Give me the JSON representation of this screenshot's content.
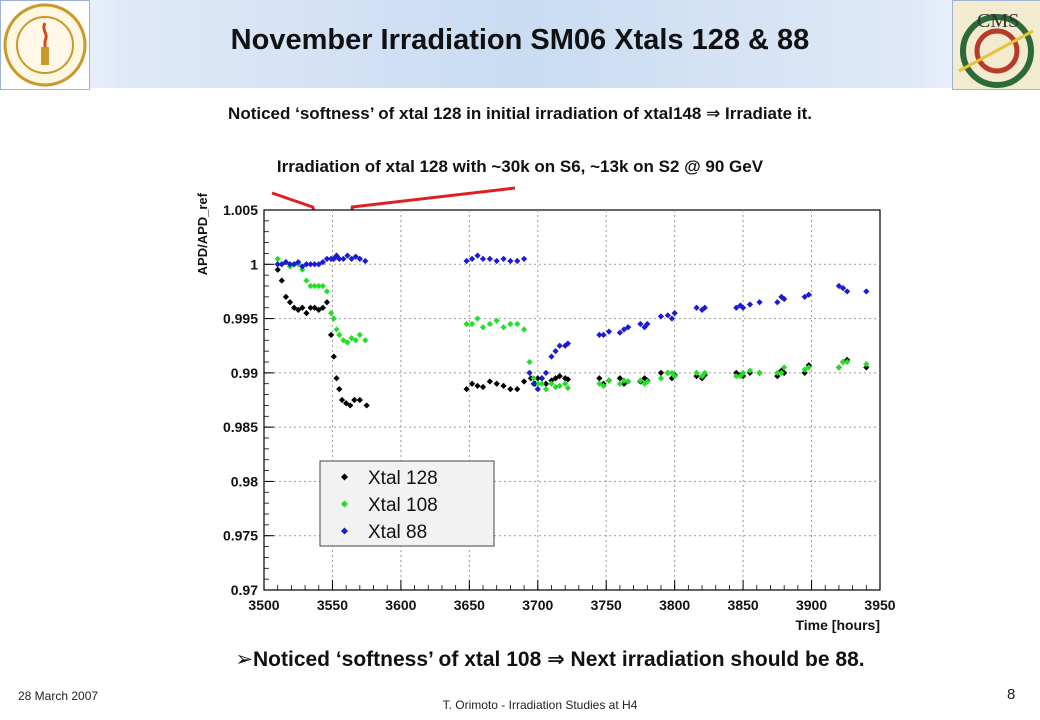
{
  "slide": {
    "title": "November Irradiation SM06 Xtals 128 & 88",
    "note_top": "Noticed ‘softness’ of xtal 128 in initial irradiation of xtal148 ⇒ Irradiate it.",
    "note_irradiation": "Irradiation of xtal 128 with ~30k on S6, ~13k on S2 @ 90 GeV",
    "bullet": "➢Noticed ‘softness’ of xtal 108 ⇒ Next irradiation should be 88.",
    "date": "28 March 2007",
    "footer": "T. Orimoto - Irradiation Studies at H4",
    "page_number": "8"
  },
  "logos": {
    "left": "caltech-seal-icon",
    "right": "cms-logo-icon"
  },
  "chart_data": {
    "type": "scatter",
    "xlabel": "Time [hours]",
    "ylabel": "APD/APD_ref",
    "xlim": [
      3500,
      3950
    ],
    "ylim": [
      0.97,
      1.005
    ],
    "x_ticks": [
      3500,
      3550,
      3600,
      3650,
      3700,
      3750,
      3800,
      3850,
      3900,
      3950
    ],
    "y_ticks": [
      0.97,
      0.975,
      0.98,
      0.985,
      0.99,
      0.995,
      1,
      1.005
    ],
    "grid": true,
    "legend_position": "lower-middle",
    "colors": {
      "Xtal 128": "#000000",
      "Xtal 108": "#22e022",
      "Xtal 88": "#1a1ad8",
      "annotation": "#e02020"
    },
    "series": [
      {
        "name": "Xtal 128",
        "color": "#000000",
        "x": [
          3510,
          3513,
          3516,
          3519,
          3522,
          3525,
          3528,
          3531,
          3534,
          3537,
          3540,
          3543,
          3546,
          3549,
          3551,
          3553,
          3555,
          3557,
          3560,
          3563,
          3566,
          3570,
          3575,
          3648,
          3652,
          3656,
          3660,
          3665,
          3670,
          3675,
          3680,
          3685,
          3690,
          3695,
          3698,
          3700,
          3703,
          3706,
          3710,
          3713,
          3716,
          3720,
          3722,
          3745,
          3748,
          3752,
          3760,
          3763,
          3766,
          3775,
          3778,
          3780,
          3790,
          3795,
          3798,
          3800,
          3816,
          3820,
          3822,
          3845,
          3848,
          3850,
          3855,
          3862,
          3875,
          3878,
          3880,
          3895,
          3898,
          3920,
          3923,
          3926,
          3940
        ],
        "y": [
          0.9995,
          0.9985,
          0.997,
          0.9965,
          0.996,
          0.9958,
          0.996,
          0.9955,
          0.996,
          0.996,
          0.9958,
          0.996,
          0.9965,
          0.9935,
          0.9915,
          0.9895,
          0.9885,
          0.9875,
          0.9872,
          0.987,
          0.9875,
          0.9875,
          0.987,
          0.9885,
          0.989,
          0.9888,
          0.9887,
          0.9892,
          0.989,
          0.9888,
          0.9885,
          0.9885,
          0.9892,
          0.9895,
          0.989,
          0.9895,
          0.9895,
          0.989,
          0.9893,
          0.9895,
          0.9897,
          0.9895,
          0.9894,
          0.9895,
          0.989,
          0.9893,
          0.9895,
          0.989,
          0.9892,
          0.9892,
          0.9895,
          0.9893,
          0.99,
          0.99,
          0.9895,
          0.9898,
          0.9897,
          0.9895,
          0.9898,
          0.99,
          0.9898,
          0.9897,
          0.99,
          0.99,
          0.9897,
          0.9902,
          0.99,
          0.99,
          0.9907,
          0.9905,
          0.991,
          0.9912,
          0.9905
        ]
      },
      {
        "name": "Xtal 108",
        "color": "#22e022",
        "x": [
          3510,
          3513,
          3516,
          3519,
          3522,
          3525,
          3528,
          3531,
          3534,
          3537,
          3540,
          3543,
          3546,
          3549,
          3551,
          3553,
          3555,
          3558,
          3561,
          3564,
          3567,
          3570,
          3574,
          3648,
          3652,
          3656,
          3660,
          3665,
          3670,
          3675,
          3680,
          3685,
          3690,
          3694,
          3697,
          3700,
          3703,
          3706,
          3710,
          3713,
          3716,
          3720,
          3722,
          3745,
          3748,
          3752,
          3760,
          3763,
          3766,
          3775,
          3778,
          3780,
          3790,
          3795,
          3798,
          3800,
          3816,
          3820,
          3822,
          3845,
          3848,
          3850,
          3855,
          3862,
          3875,
          3878,
          3880,
          3895,
          3898,
          3920,
          3923,
          3926,
          3940
        ],
        "y": [
          1.0005,
          1.0,
          1.0002,
          0.9998,
          1.0,
          1.0,
          0.9995,
          0.9985,
          0.998,
          0.998,
          0.998,
          0.998,
          0.9975,
          0.9955,
          0.995,
          0.994,
          0.9935,
          0.993,
          0.9928,
          0.9932,
          0.993,
          0.9935,
          0.993,
          0.9945,
          0.9945,
          0.995,
          0.9942,
          0.9945,
          0.9948,
          0.9942,
          0.9945,
          0.9945,
          0.994,
          0.991,
          0.9895,
          0.989,
          0.989,
          0.9885,
          0.989,
          0.9887,
          0.9888,
          0.989,
          0.9886,
          0.989,
          0.9888,
          0.9893,
          0.989,
          0.9893,
          0.9892,
          0.9893,
          0.989,
          0.9892,
          0.9895,
          0.99,
          0.99,
          0.9897,
          0.99,
          0.9897,
          0.99,
          0.9897,
          0.9897,
          0.99,
          0.9902,
          0.99,
          0.99,
          0.99,
          0.9905,
          0.9903,
          0.9905,
          0.9905,
          0.991,
          0.991,
          0.9908
        ]
      },
      {
        "name": "Xtal 88",
        "color": "#1a1ad8",
        "x": [
          3510,
          3513,
          3516,
          3519,
          3522,
          3525,
          3528,
          3531,
          3534,
          3537,
          3540,
          3543,
          3546,
          3549,
          3551,
          3553,
          3555,
          3558,
          3561,
          3564,
          3567,
          3570,
          3574,
          3648,
          3652,
          3656,
          3660,
          3665,
          3670,
          3675,
          3680,
          3685,
          3690,
          3694,
          3697,
          3700,
          3703,
          3706,
          3710,
          3713,
          3716,
          3720,
          3722,
          3745,
          3748,
          3752,
          3760,
          3763,
          3766,
          3775,
          3778,
          3780,
          3790,
          3795,
          3798,
          3800,
          3816,
          3820,
          3822,
          3845,
          3848,
          3850,
          3855,
          3862,
          3875,
          3878,
          3880,
          3895,
          3898,
          3920,
          3923,
          3926,
          3940
        ],
        "y": [
          1.0,
          1.0,
          1.0002,
          1.0,
          1.0,
          1.0002,
          0.9998,
          1.0,
          1.0,
          1.0,
          1.0,
          1.0002,
          1.0005,
          1.0005,
          1.0005,
          1.0008,
          1.0005,
          1.0005,
          1.0008,
          1.0005,
          1.0007,
          1.0005,
          1.0003,
          1.0003,
          1.0005,
          1.0008,
          1.0005,
          1.0005,
          1.0003,
          1.0005,
          1.0003,
          1.0003,
          1.0005,
          0.99,
          0.989,
          0.9885,
          0.9895,
          0.99,
          0.9915,
          0.992,
          0.9925,
          0.9925,
          0.9927,
          0.9935,
          0.9935,
          0.9938,
          0.9937,
          0.994,
          0.9942,
          0.9945,
          0.9942,
          0.9945,
          0.9952,
          0.9953,
          0.995,
          0.9955,
          0.996,
          0.9958,
          0.996,
          0.996,
          0.9962,
          0.996,
          0.9963,
          0.9965,
          0.9965,
          0.997,
          0.9968,
          0.997,
          0.9972,
          0.998,
          0.9978,
          0.9975,
          0.9975
        ]
      }
    ],
    "annotation_markers_x": [
      3548,
      3563
    ]
  }
}
